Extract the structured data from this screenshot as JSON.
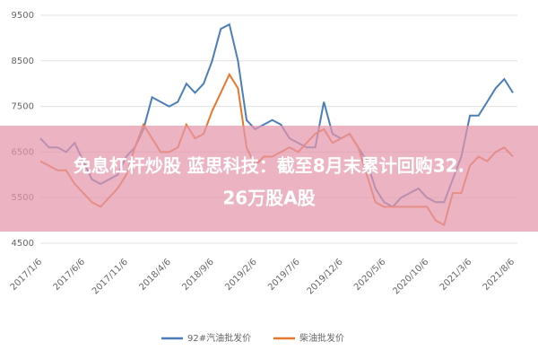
{
  "chart_data": {
    "type": "line",
    "categories": [
      "2017/1/6",
      null,
      null,
      null,
      null,
      "2017/6/6",
      null,
      null,
      null,
      null,
      "2017/11/6",
      null,
      null,
      null,
      null,
      "2018/4/6",
      null,
      null,
      null,
      null,
      "2018/9/6",
      null,
      null,
      null,
      null,
      "2019/2/6",
      null,
      null,
      null,
      null,
      "2019/7/6",
      null,
      null,
      null,
      null,
      "2019/12/6",
      null,
      null,
      null,
      null,
      "2020/5/6",
      null,
      null,
      null,
      null,
      "2020/10/6",
      null,
      null,
      null,
      null,
      "2021/3/6",
      null,
      null,
      null,
      null,
      "2021/8/6"
    ],
    "series": [
      {
        "name": "92#汽油批发价",
        "color": "#4a7ebb",
        "values": [
          6800,
          6600,
          6600,
          6500,
          6700,
          6300,
          5900,
          5800,
          5900,
          6000,
          6400,
          6600,
          7000,
          7700,
          7600,
          7500,
          7600,
          8000,
          7800,
          8000,
          8500,
          9200,
          9300,
          8500,
          7200,
          7000,
          7100,
          7200,
          7100,
          6800,
          6700,
          6600,
          6600,
          7600,
          6900,
          6800,
          6900,
          6600,
          6300,
          5700,
          5400,
          5300,
          5500,
          5600,
          5700,
          5500,
          5400,
          5400,
          5900,
          6400,
          7300,
          7300,
          7600,
          7900,
          8100,
          7800
        ]
      },
      {
        "name": "柴油批发价",
        "color": "#e8762d",
        "values": [
          6300,
          6200,
          6100,
          6100,
          5800,
          5600,
          5400,
          5300,
          5500,
          5700,
          6000,
          6600,
          7100,
          6800,
          6500,
          6500,
          6600,
          7100,
          6800,
          6900,
          7400,
          7800,
          8200,
          7900,
          6600,
          6200,
          6400,
          6400,
          6500,
          6600,
          6500,
          6700,
          6900,
          7000,
          6700,
          6800,
          6900,
          6600,
          6000,
          5400,
          5300,
          5300,
          5300,
          5300,
          5300,
          5300,
          5000,
          4900,
          5600,
          5600,
          6200,
          6400,
          6300,
          6500,
          6600,
          6400
        ]
      }
    ],
    "ylim": [
      4500,
      9500
    ],
    "yticks": [
      4500,
      5500,
      6500,
      7500,
      8500,
      9500
    ],
    "grid": true
  },
  "banner": {
    "lines": [
      "免息杠杆炒股 蓝思科技：截至8月末累计回购32.",
      "26万股A股"
    ]
  }
}
